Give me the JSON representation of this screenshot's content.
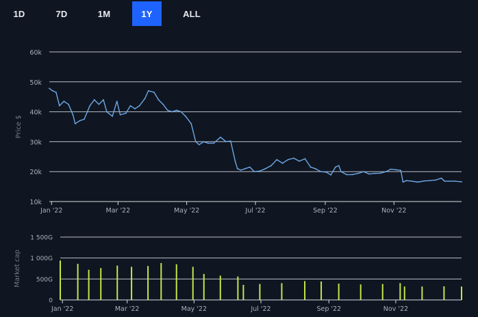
{
  "range_tabs": {
    "items": [
      {
        "label": "1D",
        "name": "range-1d"
      },
      {
        "label": "7D",
        "name": "range-7d"
      },
      {
        "label": "1M",
        "name": "range-1m"
      },
      {
        "label": "1Y",
        "name": "range-1y"
      },
      {
        "label": "ALL",
        "name": "range-all"
      }
    ],
    "selected": "1Y"
  },
  "colors": {
    "background": "#0f1621",
    "grid": "#d9dde3",
    "price_line": "#6ea8e8",
    "bars": "#c5e64a",
    "axis_text": "#aab2bd",
    "active_tab": "#1f63ff"
  },
  "chart_data": [
    {
      "type": "line",
      "ylabel": "Price $",
      "xlabel": "",
      "ylim": [
        10000,
        60000
      ],
      "yticks": [
        10000,
        20000,
        30000,
        40000,
        50000,
        60000
      ],
      "ytick_labels": [
        "10k",
        "20k",
        "30k",
        "40k",
        "50k",
        "60k"
      ],
      "xtick_labels": [
        "Jan '22",
        "Mar '22",
        "May '22",
        "Jul '22",
        "Sep '22",
        "Nov '22"
      ],
      "xtick_dates": [
        "2022-01-01",
        "2022-03-01",
        "2022-05-01",
        "2022-07-01",
        "2022-09-01",
        "2022-11-01"
      ],
      "x_start": "2021-12-30",
      "x_end": "2022-12-31",
      "grid": true,
      "series": [
        {
          "x": [
            "2021-12-30",
            "2022-01-02",
            "2022-01-05",
            "2022-01-08",
            "2022-01-12",
            "2022-01-16",
            "2022-01-20",
            "2022-01-22",
            "2022-01-26",
            "2022-01-30",
            "2022-02-04",
            "2022-02-08",
            "2022-02-12",
            "2022-02-16",
            "2022-02-19",
            "2022-02-24",
            "2022-02-28",
            "2022-03-03",
            "2022-03-08",
            "2022-03-12",
            "2022-03-16",
            "2022-03-20",
            "2022-03-25",
            "2022-03-28",
            "2022-04-02",
            "2022-04-06",
            "2022-04-10",
            "2022-04-14",
            "2022-04-18",
            "2022-04-22",
            "2022-04-26",
            "2022-04-30",
            "2022-05-05",
            "2022-05-09",
            "2022-05-12",
            "2022-05-16",
            "2022-05-20",
            "2022-05-25",
            "2022-05-31",
            "2022-06-05",
            "2022-06-09",
            "2022-06-13",
            "2022-06-15",
            "2022-06-18",
            "2022-06-22",
            "2022-06-26",
            "2022-06-30",
            "2022-07-05",
            "2022-07-10",
            "2022-07-15",
            "2022-07-20",
            "2022-07-25",
            "2022-07-30",
            "2022-08-04",
            "2022-08-09",
            "2022-08-14",
            "2022-08-19",
            "2022-08-23",
            "2022-08-28",
            "2022-09-02",
            "2022-09-06",
            "2022-09-10",
            "2022-09-13",
            "2022-09-15",
            "2022-09-20",
            "2022-09-25",
            "2022-09-30",
            "2022-10-05",
            "2022-10-10",
            "2022-10-15",
            "2022-10-20",
            "2022-10-25",
            "2022-10-29",
            "2022-11-03",
            "2022-11-07",
            "2022-11-09",
            "2022-11-12",
            "2022-11-17",
            "2022-11-22",
            "2022-11-28",
            "2022-12-03",
            "2022-12-08",
            "2022-12-13",
            "2022-12-16",
            "2022-12-20",
            "2022-12-25",
            "2022-12-31"
          ],
          "y": [
            47800,
            47000,
            46500,
            42000,
            43500,
            42500,
            39000,
            36000,
            37000,
            37500,
            42000,
            44000,
            42500,
            44000,
            40000,
            38500,
            43500,
            39000,
            39500,
            42000,
            41000,
            42000,
            44500,
            47000,
            46500,
            44000,
            42500,
            40500,
            40000,
            40500,
            40000,
            38500,
            36000,
            30000,
            29000,
            30000,
            29500,
            29500,
            31500,
            30000,
            30200,
            23500,
            21000,
            20500,
            21000,
            21500,
            20000,
            20200,
            21000,
            22000,
            24000,
            22800,
            24000,
            24500,
            23500,
            24300,
            21500,
            21000,
            20000,
            19800,
            18900,
            21500,
            22000,
            20000,
            19000,
            19000,
            19400,
            20000,
            19200,
            19400,
            19500,
            20000,
            20800,
            20600,
            20400,
            16500,
            17000,
            16800,
            16500,
            16900,
            17000,
            17200,
            17800,
            16800,
            16800,
            16800,
            16600
          ]
        }
      ]
    },
    {
      "type": "bar",
      "ylabel": "Market cap",
      "xlabel": "",
      "ylim": [
        0,
        1500
      ],
      "yticks": [
        0,
        500,
        1000,
        1500
      ],
      "ytick_labels": [
        "0",
        "500G",
        "1 000G",
        "1 500G"
      ],
      "xtick_labels": [
        "Jan '22",
        "Mar '22",
        "May '22",
        "Jul '22",
        "Sep '22",
        "Nov '22"
      ],
      "xtick_dates": [
        "2022-01-01",
        "2022-03-01",
        "2022-05-01",
        "2022-07-01",
        "2022-09-01",
        "2022-11-01"
      ],
      "grid": true,
      "series": [
        {
          "x": [
            "2021-12-30",
            "2022-01-15",
            "2022-01-25",
            "2022-02-05",
            "2022-02-20",
            "2022-03-05",
            "2022-03-20",
            "2022-04-01",
            "2022-04-15",
            "2022-04-30",
            "2022-05-10",
            "2022-05-25",
            "2022-06-10",
            "2022-06-15",
            "2022-06-30",
            "2022-07-20",
            "2022-08-10",
            "2022-08-25",
            "2022-09-10",
            "2022-09-30",
            "2022-10-20",
            "2022-11-05",
            "2022-11-09",
            "2022-11-25",
            "2022-12-15",
            "2022-12-31"
          ],
          "values": [
            940,
            860,
            720,
            760,
            820,
            790,
            810,
            880,
            850,
            790,
            620,
            580,
            560,
            360,
            380,
            400,
            450,
            440,
            390,
            370,
            380,
            400,
            320,
            320,
            325,
            320
          ]
        }
      ]
    }
  ]
}
